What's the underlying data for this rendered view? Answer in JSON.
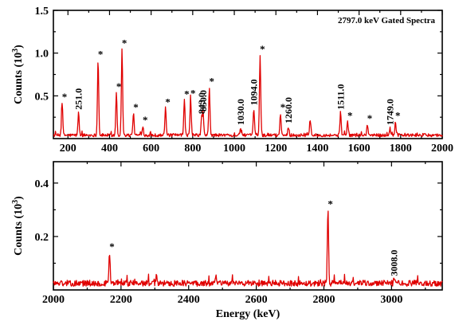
{
  "chart_data": [
    {
      "type": "line",
      "title": "2797.0 keV Gated Spectra",
      "ylabel": "Counts (10^3)",
      "xlim": [
        130,
        2000
      ],
      "ylim": [
        0,
        1.5
      ],
      "xticks": [
        200,
        400,
        600,
        800,
        1000,
        1200,
        1400,
        1600,
        1800,
        2000
      ],
      "yticks": [
        0.5,
        1.0,
        1.5
      ],
      "ytick_labels": [
        "0.5",
        "1.0",
        "1.5"
      ],
      "baseline": 0.04,
      "color": "#e00000",
      "peaks": [
        {
          "x": 172,
          "y": 0.42,
          "star": true
        },
        {
          "x": 251,
          "y": 0.3,
          "label": "251.0"
        },
        {
          "x": 345,
          "y": 0.92,
          "star": true
        },
        {
          "x": 433,
          "y": 0.54,
          "star": true
        },
        {
          "x": 460,
          "y": 1.05,
          "star": true
        },
        {
          "x": 515,
          "y": 0.3,
          "star": true
        },
        {
          "x": 560,
          "y": 0.15,
          "star": true
        },
        {
          "x": 669,
          "y": 0.36,
          "star": true
        },
        {
          "x": 760,
          "y": 0.45,
          "star": true
        },
        {
          "x": 790,
          "y": 0.46,
          "star": true
        },
        {
          "x": 843,
          "y": 0.25,
          "label": "843.0"
        },
        {
          "x": 850,
          "y": 0.28,
          "label": "850.0"
        },
        {
          "x": 880,
          "y": 0.6,
          "star": true
        },
        {
          "x": 1030,
          "y": 0.12,
          "label": "1030.0"
        },
        {
          "x": 1094,
          "y": 0.35,
          "label": "1094.0"
        },
        {
          "x": 1124,
          "y": 0.98,
          "star": true
        },
        {
          "x": 1222,
          "y": 0.3,
          "star": true
        },
        {
          "x": 1260,
          "y": 0.14,
          "label": "1260.0"
        },
        {
          "x": 1365,
          "y": 0.22
        },
        {
          "x": 1511,
          "y": 0.3,
          "label": "1511.0"
        },
        {
          "x": 1545,
          "y": 0.2,
          "star": true
        },
        {
          "x": 1640,
          "y": 0.17,
          "star": true
        },
        {
          "x": 1749,
          "y": 0.12,
          "label": "1749.0"
        },
        {
          "x": 1775,
          "y": 0.2,
          "star": true
        }
      ]
    },
    {
      "type": "line",
      "xlabel": "Energy (keV)",
      "ylabel": "Counts (10^3)",
      "xlim": [
        2000,
        3150
      ],
      "ylim": [
        0,
        0.48
      ],
      "xticks": [
        2000,
        2200,
        2400,
        2600,
        2800,
        3000
      ],
      "yticks": [
        0.2,
        0.4
      ],
      "ytick_labels": [
        "0.2",
        "0.4"
      ],
      "baseline": 0.025,
      "color": "#e00000",
      "peaks": [
        {
          "x": 2166,
          "y": 0.14,
          "star": true
        },
        {
          "x": 2305,
          "y": 0.05
        },
        {
          "x": 2480,
          "y": 0.05
        },
        {
          "x": 2812,
          "y": 0.3,
          "star": true
        },
        {
          "x": 3008,
          "y": 0.04,
          "label": "3008.0"
        }
      ]
    }
  ]
}
